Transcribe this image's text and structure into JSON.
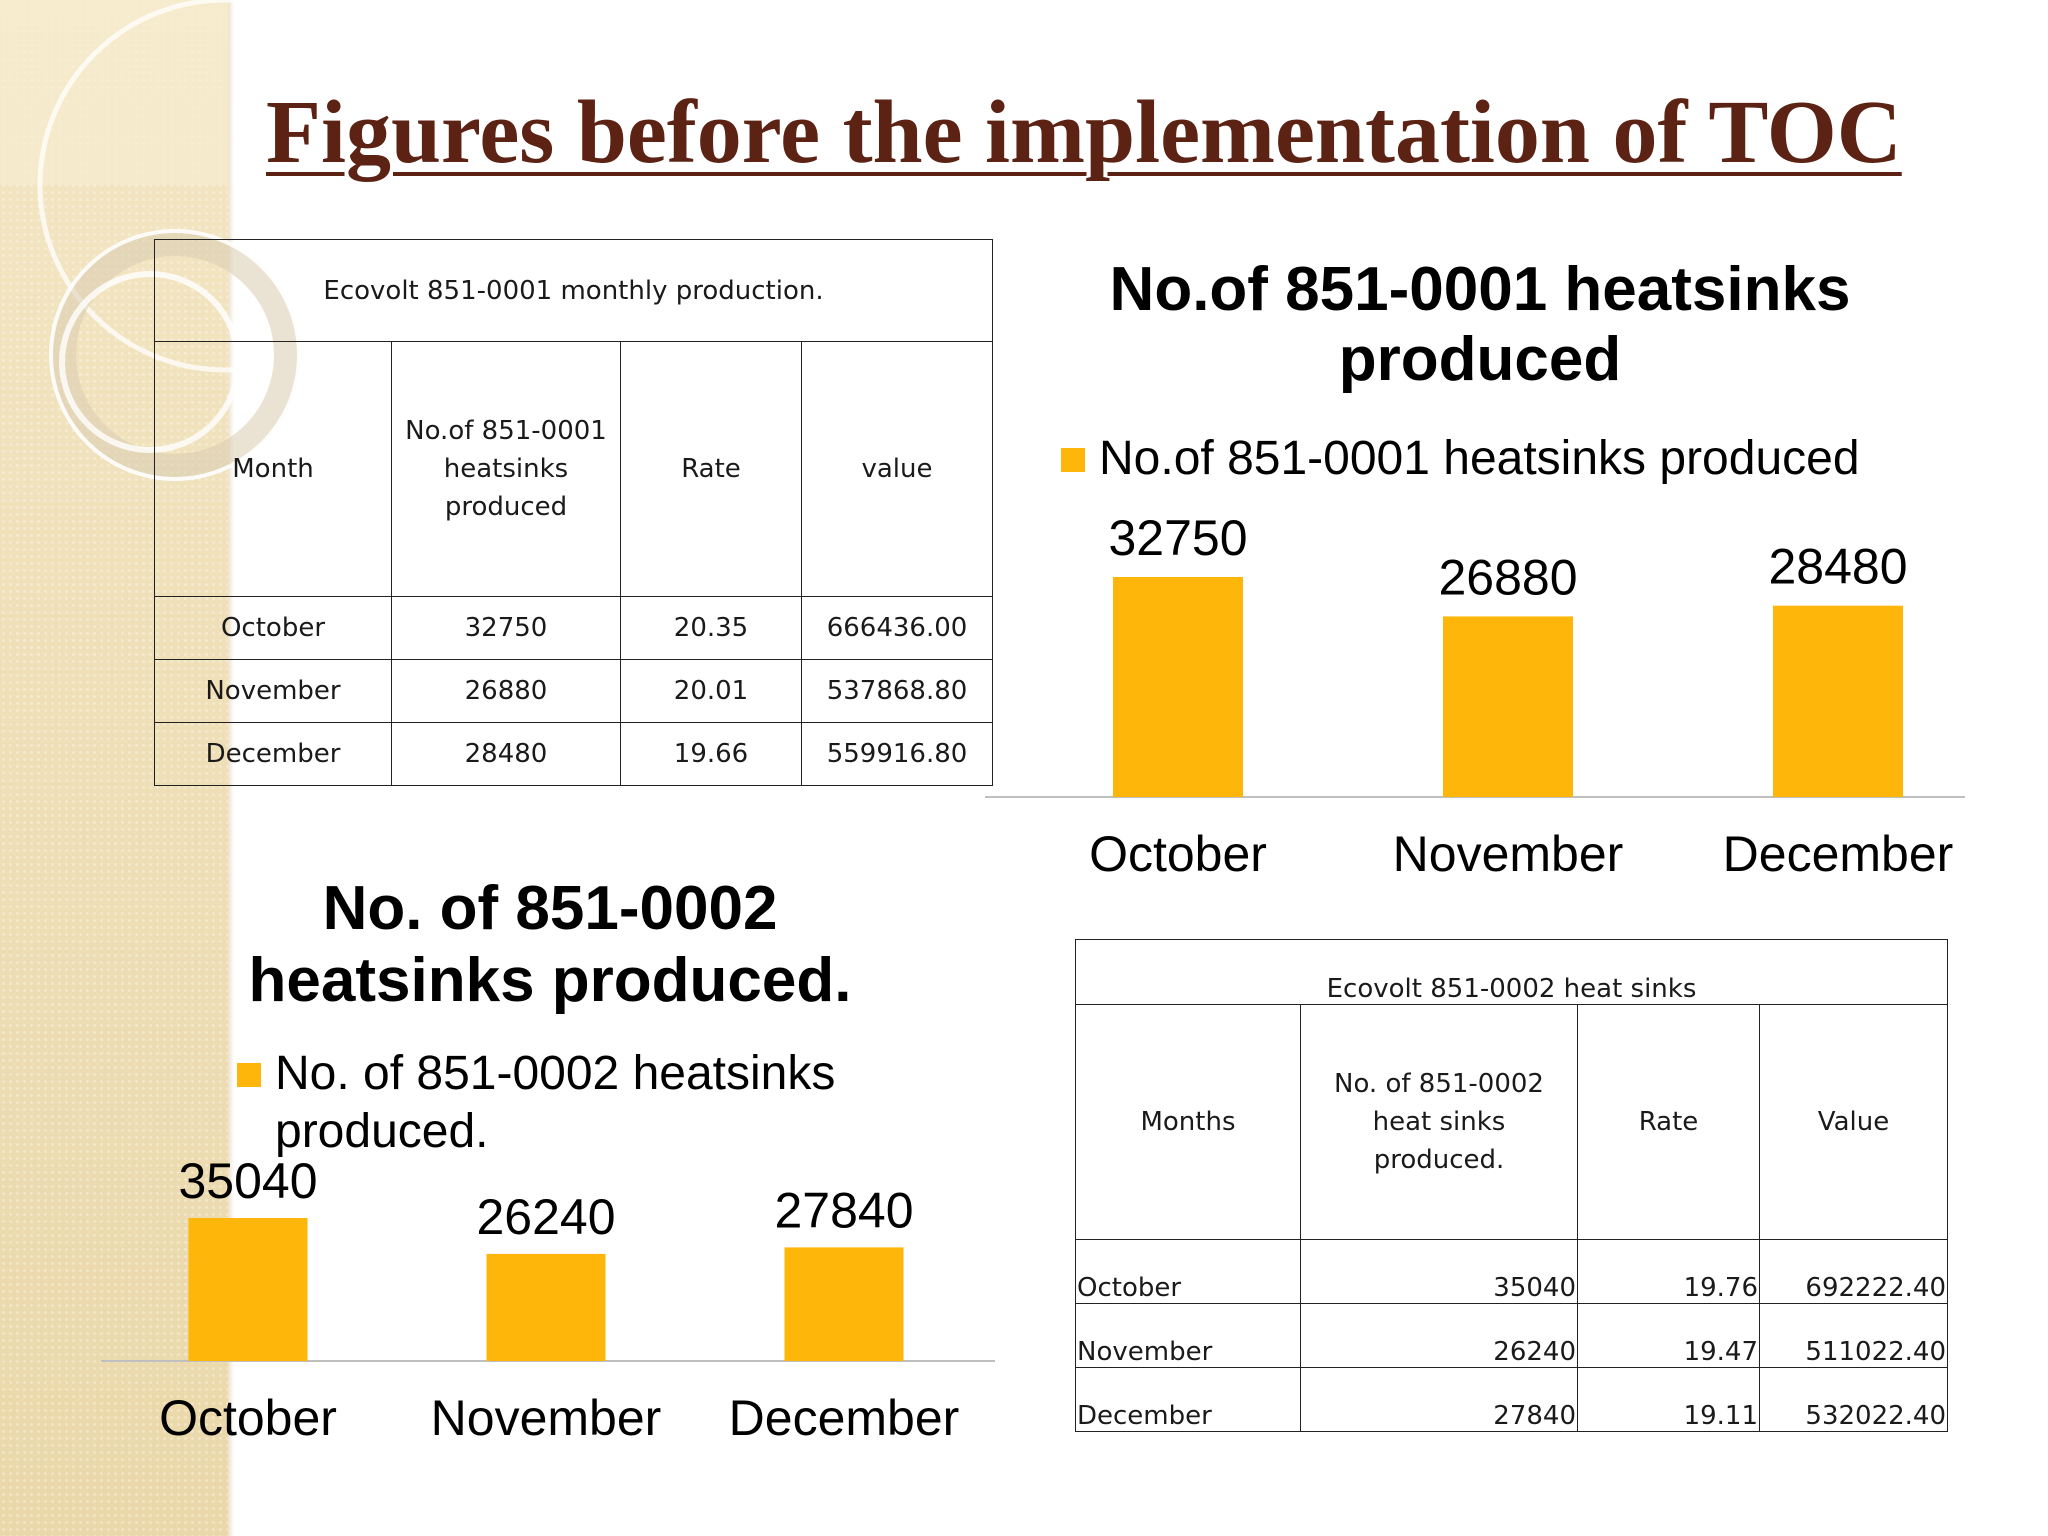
{
  "slide": {
    "title": "Figures before the implementation of TOC"
  },
  "table1": {
    "caption": "Ecovolt 851-0001 monthly production.",
    "headers": [
      "Month",
      "No.of 851-0001 heatsinks produced",
      "Rate",
      "value"
    ],
    "rows": [
      [
        "October",
        "32750",
        "20.35",
        "666436.00"
      ],
      [
        "November",
        "26880",
        "20.01",
        "537868.80"
      ],
      [
        "December",
        "28480",
        "19.66",
        "559916.80"
      ]
    ]
  },
  "table2": {
    "caption": "Ecovolt 851-0002 heat sinks",
    "headers": [
      "Months",
      "No. of 851-0002 heat sinks produced.",
      "Rate",
      "Value"
    ],
    "rows": [
      [
        "October",
        "35040",
        "19.76",
        "692222.40"
      ],
      [
        "November",
        "26240",
        "19.47",
        "511022.40"
      ],
      [
        "December",
        "27840",
        "19.11",
        "532022.40"
      ]
    ]
  },
  "chart_data": [
    {
      "type": "bar",
      "title": "No.of 851-0001 heatsinks produced",
      "categories": [
        "October",
        "November",
        "December"
      ],
      "series": [
        {
          "name": "No.of 851-0001 heatsinks produced",
          "values": [
            32750,
            26880,
            28480
          ],
          "color": "#FFB60B"
        }
      ],
      "data_labels": true,
      "legend": "top-left",
      "grid": false,
      "ylim": [
        0,
        35000
      ]
    },
    {
      "type": "bar",
      "title": "No. of 851-0002 heatsinks produced.",
      "categories": [
        "October",
        "November",
        "December"
      ],
      "series": [
        {
          "name": "No. of 851-0002 heatsinks produced.",
          "values": [
            35040,
            26240,
            27840
          ],
          "color": "#FFB60B"
        }
      ],
      "data_labels": true,
      "legend": "top-left",
      "grid": false,
      "ylim": [
        0,
        35000
      ]
    }
  ]
}
